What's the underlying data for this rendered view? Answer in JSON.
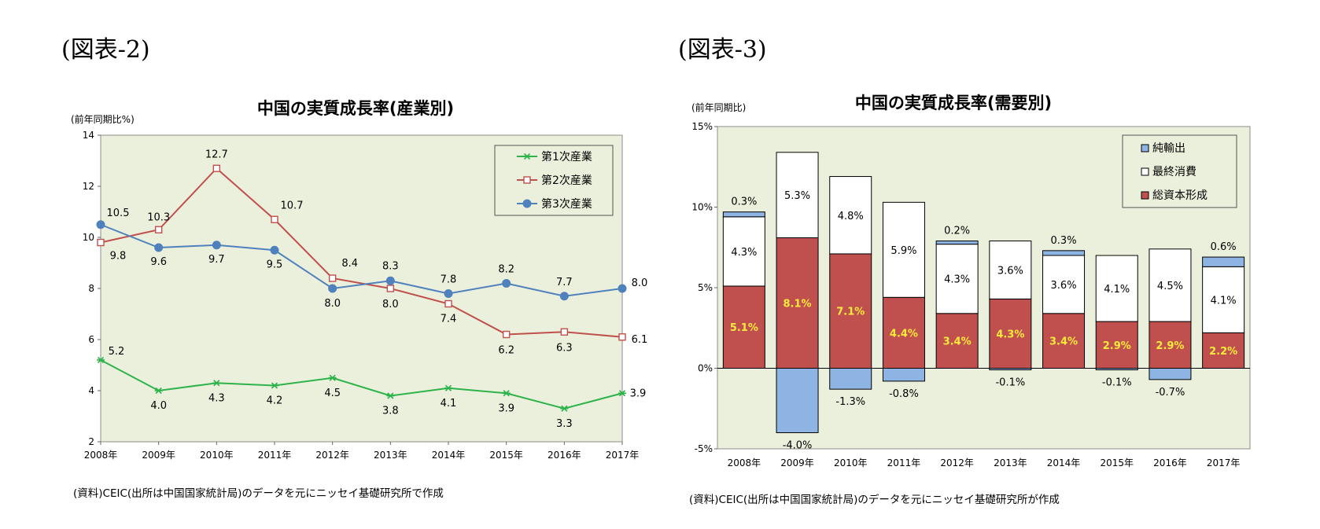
{
  "figures": {
    "fig2_label": "(図表-2)",
    "fig3_label": "(図表-3)"
  },
  "colors": {
    "plot_bg": "#ebf0dc",
    "primary": "#2db34a",
    "secondary": "#c0504d",
    "tertiary": "#4f81bd",
    "net_exports": "#8db4e2",
    "consumption": "#ffffff",
    "capital": "#c0504d",
    "inner_label": "#ffeb3b"
  },
  "chart_data": [
    {
      "type": "line",
      "title": "中国の実質成長率(産業別)",
      "unit_label": "(前年同期比%)",
      "x": [
        "2008年",
        "2009年",
        "2010年",
        "2011年",
        "2012年",
        "2013年",
        "2014年",
        "2015年",
        "2016年",
        "2017年"
      ],
      "ylim": [
        2,
        14
      ],
      "yticks": [
        "2",
        "4",
        "6",
        "8",
        "10",
        "12",
        "14"
      ],
      "grid": false,
      "legend_position": "top-right",
      "series": [
        {
          "name": "第1次産業",
          "values": [
            5.2,
            4.0,
            4.3,
            4.2,
            4.5,
            3.8,
            4.1,
            3.9,
            3.3,
            3.9
          ],
          "labels": [
            "5.2",
            "4.0",
            "4.3",
            "4.2",
            "4.5",
            "3.8",
            "4.1",
            "3.9",
            "3.3",
            "3.9"
          ]
        },
        {
          "name": "第2次産業",
          "values": [
            9.8,
            10.3,
            12.7,
            10.7,
            8.4,
            8.0,
            7.4,
            6.2,
            6.3,
            6.1
          ],
          "labels": [
            "9.8",
            "10.3",
            "12.7",
            "10.7",
            "8.4",
            "8.0",
            "7.4",
            "6.2",
            "6.3",
            "6.1"
          ]
        },
        {
          "name": "第3次産業",
          "values": [
            10.5,
            9.6,
            9.7,
            9.5,
            8.0,
            8.3,
            7.8,
            8.2,
            7.7,
            8.0
          ],
          "labels": [
            "10.5",
            "9.6",
            "9.7",
            "9.5",
            "8.0",
            "8.3",
            "7.8",
            "8.2",
            "7.7",
            "8.0"
          ]
        }
      ],
      "source": "(資料)CEIC(出所は中国国家統計局)のデータを元にニッセイ基礎研究所で作成"
    },
    {
      "type": "bar",
      "title": "中国の実質成長率(需要別)",
      "unit_label": "(前年同期比)",
      "categories": [
        "2008年",
        "2009年",
        "2010年",
        "2011年",
        "2012年",
        "2013年",
        "2014年",
        "2015年",
        "2016年",
        "2017年"
      ],
      "ylim": [
        -5,
        15
      ],
      "yticks": [
        "-5%",
        "0%",
        "5%",
        "10%",
        "15%"
      ],
      "grid": false,
      "stacked": true,
      "legend_position": "top-right",
      "legend": [
        "純輸出",
        "最終消費",
        "総資本形成"
      ],
      "series": [
        {
          "name": "総資本形成",
          "values": [
            5.1,
            8.1,
            7.1,
            4.4,
            3.4,
            4.3,
            3.4,
            2.9,
            2.9,
            2.2
          ],
          "labels": [
            "5.1%",
            "8.1%",
            "7.1%",
            "4.4%",
            "3.4%",
            "4.3%",
            "3.4%",
            "2.9%",
            "2.9%",
            "2.2%"
          ]
        },
        {
          "name": "最終消費",
          "values": [
            4.3,
            5.3,
            4.8,
            5.9,
            4.3,
            3.6,
            3.6,
            4.1,
            4.5,
            4.1
          ],
          "labels": [
            "4.3%",
            "5.3%",
            "4.8%",
            "5.9%",
            "4.3%",
            "3.6%",
            "3.6%",
            "4.1%",
            "4.5%",
            "4.1%"
          ]
        },
        {
          "name": "純輸出",
          "values": [
            0.3,
            -4.0,
            -1.3,
            -0.8,
            0.2,
            -0.1,
            0.3,
            -0.1,
            -0.7,
            0.6
          ],
          "labels": [
            "0.3%",
            "-4.0%",
            "-1.3%",
            "-0.8%",
            "0.2%",
            "-0.1%",
            "0.3%",
            "-0.1%",
            "-0.7%",
            "0.6%"
          ]
        }
      ],
      "source": "(資料)CEIC(出所は中国国家統計局)のデータを元にニッセイ基礎研究所が作成"
    }
  ]
}
